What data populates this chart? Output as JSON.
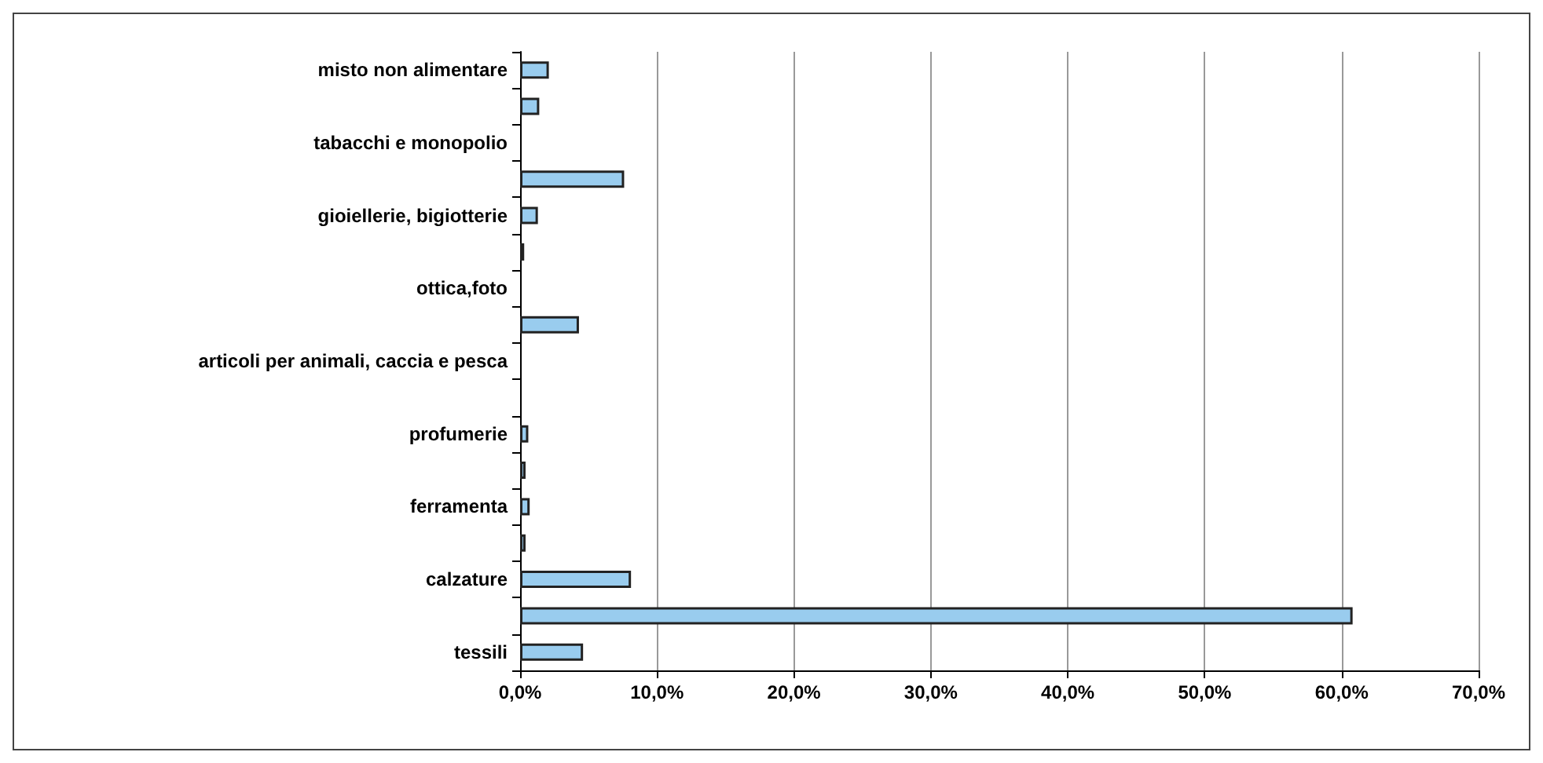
{
  "chart_data": {
    "type": "bar",
    "orientation": "horizontal",
    "categories": [
      "misto non alimentare",
      null,
      "tabacchi e monopolio",
      null,
      "gioiellerie, bigiotterie",
      null,
      "ottica,foto",
      null,
      "articoli per animali, caccia e pesca",
      null,
      "profumerie",
      null,
      "ferramenta",
      null,
      "calzature",
      null,
      "tessili"
    ],
    "values": [
      2.1,
      1.4,
      0,
      7.6,
      1.3,
      0.3,
      0,
      4.3,
      0,
      0,
      0.6,
      0.4,
      0.7,
      0.4,
      8.1,
      60.8,
      4.6
    ],
    "color": "#99ccee",
    "xlim": [
      0,
      70
    ],
    "xticks": [
      {
        "value": 0,
        "label": "0,0%"
      },
      {
        "value": 10,
        "label": "10,0%"
      },
      {
        "value": 20,
        "label": "20,0%"
      },
      {
        "value": 30,
        "label": "30,0%"
      },
      {
        "value": 40,
        "label": "40,0%"
      },
      {
        "value": 50,
        "label": "50,0%"
      },
      {
        "value": 60,
        "label": "60,0%"
      },
      {
        "value": 70,
        "label": "70,0%"
      }
    ],
    "grid": "x"
  }
}
